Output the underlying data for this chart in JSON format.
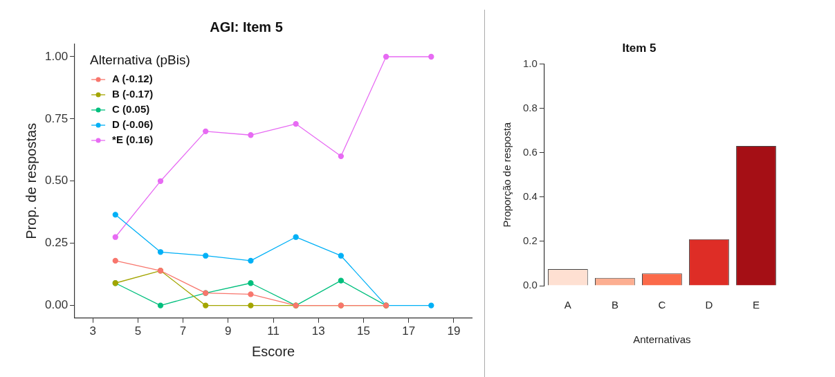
{
  "chart_data": [
    {
      "type": "line",
      "title": "AGI: Item 5",
      "xlabel": "Escore",
      "ylabel": "Prop. de respostas",
      "legend_title": "Alternativa (pBis)",
      "legend": "top left",
      "marker": "circle",
      "grid": false,
      "x": [
        4,
        6,
        8,
        10,
        12,
        14,
        16,
        18
      ],
      "xlim": [
        2.2,
        19.8
      ],
      "xticks": [
        3,
        5,
        7,
        9,
        11,
        13,
        15,
        17,
        19
      ],
      "ylim": [
        -0.05,
        1.05
      ],
      "yticks": [
        {
          "value": 0,
          "label": "0.00"
        },
        {
          "value": 0.25,
          "label": "0.25"
        },
        {
          "value": 0.5,
          "label": "0.50"
        },
        {
          "value": 0.75,
          "label": "0.75"
        },
        {
          "value": 1,
          "label": "1.00"
        }
      ],
      "series": [
        {
          "name": "A (-0.12)",
          "color": "#f8766d",
          "values": [
            0.18,
            0.14,
            0.05,
            0.045,
            0,
            0,
            0,
            null
          ]
        },
        {
          "name": "B (-0.17)",
          "color": "#a3a500",
          "values": [
            0.09,
            0.14,
            0,
            0,
            0,
            0,
            0,
            null
          ]
        },
        {
          "name": "C (0.05)",
          "color": "#00bf7d",
          "values": [
            0.09,
            0,
            0.05,
            0.09,
            0,
            0.1,
            0,
            null
          ]
        },
        {
          "name": "D (-0.06)",
          "color": "#00b0f6",
          "values": [
            0.365,
            0.215,
            0.2,
            0.18,
            0.275,
            0.2,
            0,
            0
          ]
        },
        {
          "name": "*E (0.16)",
          "color": "#e76bf3",
          "values": [
            0.275,
            0.5,
            0.7,
            0.685,
            0.73,
            0.6,
            1,
            1
          ]
        }
      ]
    },
    {
      "type": "bar",
      "title": "Item 5",
      "xlabel": "Anternativas",
      "ylabel": "Proporção de resposta",
      "legend": false,
      "grid": false,
      "categories": [
        "A",
        "B",
        "C",
        "D",
        "E"
      ],
      "values": [
        0.075,
        0.035,
        0.055,
        0.21,
        0.63
      ],
      "colors": [
        "#fee0d2",
        "#fcae91",
        "#fb6a4a",
        "#de2d26",
        "#a50f15"
      ],
      "ylim": [
        0,
        1
      ],
      "yticks": [
        {
          "value": 0,
          "label": "0.0"
        },
        {
          "value": 0.2,
          "label": "0.2"
        },
        {
          "value": 0.4,
          "label": "0.4"
        },
        {
          "value": 0.6,
          "label": "0.6"
        },
        {
          "value": 0.8,
          "label": "0.8"
        },
        {
          "value": 1,
          "label": "1.0"
        }
      ]
    }
  ]
}
